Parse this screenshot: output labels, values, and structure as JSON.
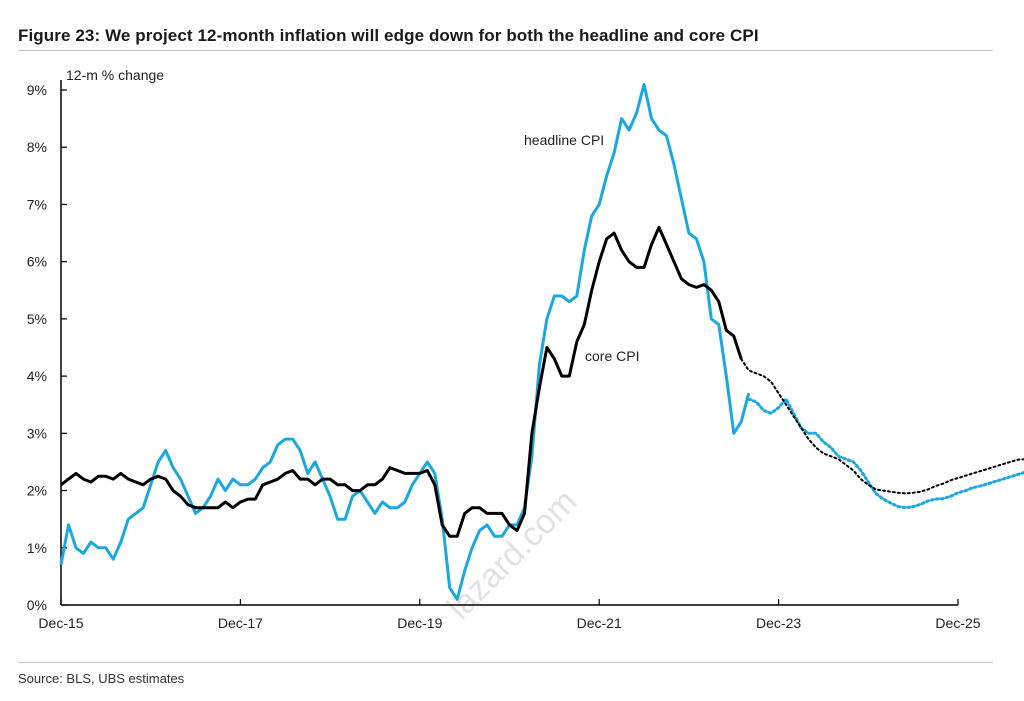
{
  "figure": {
    "title": "Figure 23: We project 12-month inflation will edge down for both the headline and core CPI",
    "source": "Source: BLS, UBS estimates",
    "watermark": "lazard.com"
  },
  "chart_data": {
    "type": "line",
    "ylabel": "12-m % change",
    "ylim": [
      0,
      9
    ],
    "yticks": [
      "0%",
      "1%",
      "2%",
      "3%",
      "4%",
      "5%",
      "6%",
      "7%",
      "8%",
      "9%"
    ],
    "xlim": [
      "2015-12",
      "2025-12"
    ],
    "xticks": [
      "Dec-15",
      "Dec-17",
      "Dec-19",
      "Dec-21",
      "Dec-23",
      "Dec-25"
    ],
    "grid": false,
    "colors": {
      "headline": "#1aa8e0",
      "core": "#000000"
    },
    "annotations": [
      {
        "text": "headline CPI",
        "series": "headline CPI"
      },
      {
        "text": "core CPI",
        "series": "core CPI"
      }
    ],
    "series": [
      {
        "name": "headline CPI",
        "actual": {
          "start": "2015-12",
          "values": [
            0.7,
            1.4,
            1.0,
            0.9,
            1.1,
            1.0,
            1.0,
            0.8,
            1.1,
            1.5,
            1.6,
            1.7,
            2.1,
            2.5,
            2.7,
            2.4,
            2.2,
            1.9,
            1.6,
            1.7,
            1.9,
            2.2,
            2.0,
            2.2,
            2.1,
            2.1,
            2.2,
            2.4,
            2.5,
            2.8,
            2.9,
            2.9,
            2.7,
            2.3,
            2.5,
            2.2,
            1.9,
            1.5,
            1.5,
            1.9,
            2.0,
            1.8,
            1.6,
            1.8,
            1.7,
            1.7,
            1.8,
            2.1,
            2.3,
            2.5,
            2.3,
            1.5,
            0.3,
            0.1,
            0.6,
            1.0,
            1.3,
            1.4,
            1.2,
            1.2,
            1.4,
            1.4,
            1.7,
            2.6,
            4.2,
            5.0,
            5.4,
            5.4,
            5.3,
            5.4,
            6.2,
            6.8,
            7.0,
            7.5,
            7.9,
            8.5,
            8.3,
            8.6,
            9.1,
            8.5,
            8.3,
            8.2,
            7.7,
            7.1,
            6.5,
            6.4,
            6.0,
            5.0,
            4.9,
            4.0,
            3.0,
            3.2,
            3.7
          ]
        },
        "projection": {
          "start": "2023-08",
          "values": [
            3.6,
            3.55,
            3.4,
            3.35,
            3.45,
            3.6,
            3.35,
            3.1,
            3.0,
            3.0,
            2.85,
            2.75,
            2.6,
            2.55,
            2.5,
            2.35,
            2.15,
            1.95,
            1.85,
            1.78,
            1.72,
            1.7,
            1.72,
            1.76,
            1.82,
            1.85,
            1.86,
            1.9,
            1.96,
            2.0,
            2.05,
            2.08,
            2.12,
            2.16,
            2.2,
            2.24,
            2.28,
            2.32
          ]
        }
      },
      {
        "name": "core CPI",
        "actual": {
          "start": "2015-12",
          "values": [
            2.1,
            2.2,
            2.3,
            2.2,
            2.15,
            2.25,
            2.25,
            2.2,
            2.3,
            2.2,
            2.15,
            2.1,
            2.2,
            2.25,
            2.2,
            2.0,
            1.9,
            1.75,
            1.7,
            1.7,
            1.7,
            1.7,
            1.8,
            1.7,
            1.8,
            1.85,
            1.85,
            2.1,
            2.15,
            2.2,
            2.3,
            2.35,
            2.2,
            2.2,
            2.1,
            2.2,
            2.2,
            2.1,
            2.1,
            2.0,
            2.0,
            2.1,
            2.1,
            2.2,
            2.4,
            2.35,
            2.3,
            2.3,
            2.3,
            2.35,
            2.1,
            1.4,
            1.2,
            1.2,
            1.6,
            1.7,
            1.7,
            1.6,
            1.6,
            1.6,
            1.4,
            1.3,
            1.6,
            3.0,
            3.8,
            4.5,
            4.3,
            4.0,
            4.0,
            4.6,
            4.9,
            5.5,
            6.0,
            6.4,
            6.5,
            6.2,
            6.0,
            5.9,
            5.9,
            6.3,
            6.6,
            6.3,
            6.0,
            5.7,
            5.6,
            5.55,
            5.6,
            5.5,
            5.3,
            4.8,
            4.7,
            4.3
          ]
        },
        "projection": {
          "start": "2023-07",
          "values": [
            4.3,
            4.1,
            4.05,
            4.0,
            3.9,
            3.7,
            3.5,
            3.3,
            3.1,
            2.9,
            2.75,
            2.65,
            2.6,
            2.55,
            2.45,
            2.35,
            2.2,
            2.1,
            2.02,
            2.0,
            1.98,
            1.96,
            1.95,
            1.96,
            1.98,
            2.02,
            2.08,
            2.12,
            2.18,
            2.22,
            2.26,
            2.3,
            2.34,
            2.38,
            2.42,
            2.46,
            2.5,
            2.54,
            2.55
          ]
        }
      }
    ]
  }
}
